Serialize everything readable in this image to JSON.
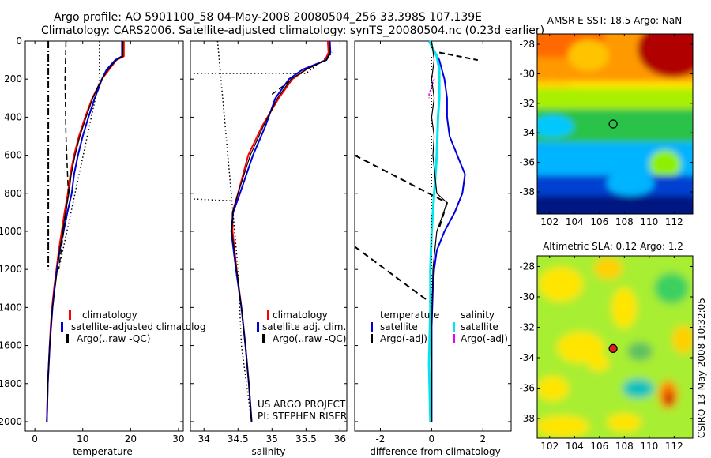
{
  "header": {
    "line1": "Argo profile: AO 5901100_58 04-May-2008 20080504_256 33.398S 107.139E",
    "line2": "Climatology: CARS2006. Satellite-adjusted climatology: synTS_20080504.nc (0.23d earlier)"
  },
  "colors": {
    "climatology": "#ff0000",
    "satellite": "#0000dd",
    "argo": "#000000",
    "sal_satellite": "#00e5ee",
    "sal_argo": "#ee00ee"
  },
  "chart_data": [
    {
      "type": "line",
      "xlabel": "temperature",
      "xlim": [
        -2,
        31
      ],
      "ylim": [
        2050,
        0
      ],
      "xticks": [
        0,
        10,
        20,
        30
      ],
      "yticks": [
        0,
        200,
        400,
        600,
        800,
        1000,
        1200,
        1400,
        1600,
        1800,
        2000
      ],
      "legend": [
        "climatology",
        "satellite-adjusted climatolog",
        "Argo(..raw -QC)"
      ],
      "series": [
        {
          "role": "climatology",
          "points": [
            [
              18.6,
              0
            ],
            [
              18.6,
              80
            ],
            [
              17,
              100
            ],
            [
              15.5,
              150
            ],
            [
              14,
              200
            ],
            [
              13,
              250
            ],
            [
              12,
              300
            ],
            [
              10.5,
              400
            ],
            [
              9.2,
              500
            ],
            [
              8.2,
              600
            ],
            [
              7.4,
              700
            ],
            [
              6.9,
              800
            ],
            [
              6.2,
              900
            ],
            [
              5.6,
              1000
            ],
            [
              5,
              1100
            ],
            [
              4.5,
              1200
            ],
            [
              4,
              1300
            ],
            [
              3.6,
              1400
            ],
            [
              3.3,
              1500
            ],
            [
              3.1,
              1600
            ],
            [
              2.9,
              1700
            ],
            [
              2.7,
              1800
            ],
            [
              2.6,
              1900
            ],
            [
              2.5,
              2000
            ]
          ]
        },
        {
          "role": "satellite",
          "points": [
            [
              18.2,
              0
            ],
            [
              18.2,
              80
            ],
            [
              16.8,
              100
            ],
            [
              15,
              150
            ],
            [
              14,
              200
            ],
            [
              13.3,
              250
            ],
            [
              12.5,
              300
            ],
            [
              11.2,
              400
            ],
            [
              10,
              500
            ],
            [
              9,
              600
            ],
            [
              8.2,
              700
            ],
            [
              7.7,
              800
            ],
            [
              6.8,
              900
            ],
            [
              6,
              1000
            ],
            [
              5.2,
              1100
            ],
            [
              4.6,
              1200
            ],
            [
              4.1,
              1300
            ],
            [
              3.7,
              1400
            ],
            [
              3.4,
              1500
            ],
            [
              3.1,
              1600
            ],
            [
              2.9,
              1700
            ],
            [
              2.7,
              1800
            ],
            [
              2.6,
              1900
            ],
            [
              2.5,
              2000
            ]
          ]
        },
        {
          "role": "argo",
          "points": [
            [
              18.4,
              0
            ],
            [
              18.4,
              80
            ],
            [
              17,
              100
            ],
            [
              15.3,
              150
            ],
            [
              14,
              200
            ],
            [
              13,
              250
            ],
            [
              12.1,
              300
            ],
            [
              10.7,
              400
            ],
            [
              9.4,
              500
            ],
            [
              8.4,
              600
            ],
            [
              7.6,
              700
            ],
            [
              7.1,
              800
            ],
            [
              6.4,
              900
            ],
            [
              5.8,
              1000
            ],
            [
              5.2,
              1100
            ],
            [
              4.7,
              1200
            ],
            [
              4.2,
              1300
            ],
            [
              3.7,
              1400
            ],
            [
              3.4,
              1500
            ],
            [
              3.1,
              1600
            ],
            [
              2.9,
              1700
            ],
            [
              2.7,
              1800
            ],
            [
              2.6,
              1900
            ],
            [
              2.5,
              2000
            ]
          ]
        },
        {
          "role": "argo-dashdot",
          "points": [
            [
              2.8,
              0
            ],
            [
              2.8,
              1200
            ]
          ]
        },
        {
          "role": "argo-dash",
          "points": [
            [
              6.5,
              0
            ],
            [
              6.3,
              200
            ],
            [
              6.5,
              500
            ],
            [
              7,
              800
            ],
            [
              5,
              1200
            ]
          ]
        },
        {
          "role": "argo-dot",
          "points": [
            [
              13.5,
              0
            ],
            [
              13.5,
              200
            ],
            [
              5,
              1200
            ]
          ]
        }
      ]
    },
    {
      "type": "line",
      "xlabel": "salinity",
      "xlim": [
        33.8,
        36.1
      ],
      "ylim": [
        2050,
        0
      ],
      "xticks": [
        34,
        34.5,
        35,
        35.5,
        36
      ],
      "legend": [
        "climatology",
        "satellite adj. clim.",
        "Argo(..raw -QC)"
      ],
      "annotations": [
        "US ARGO PROJECT",
        "PI: STEPHEN RISER"
      ],
      "series": [
        {
          "role": "climatology",
          "points": [
            [
              35.82,
              0
            ],
            [
              35.83,
              60
            ],
            [
              35.78,
              100
            ],
            [
              35.5,
              150
            ],
            [
              35.3,
              200
            ],
            [
              35.1,
              300
            ],
            [
              34.85,
              450
            ],
            [
              34.65,
              600
            ],
            [
              34.5,
              800
            ],
            [
              34.42,
              900
            ],
            [
              34.42,
              1000
            ],
            [
              34.48,
              1200
            ],
            [
              34.55,
              1400
            ],
            [
              34.61,
              1600
            ],
            [
              34.66,
              1800
            ],
            [
              34.7,
              2000
            ]
          ]
        },
        {
          "role": "satellite",
          "points": [
            [
              35.85,
              0
            ],
            [
              35.86,
              60
            ],
            [
              35.8,
              100
            ],
            [
              35.45,
              150
            ],
            [
              35.25,
              200
            ],
            [
              35.05,
              300
            ],
            [
              34.9,
              450
            ],
            [
              34.72,
              600
            ],
            [
              34.53,
              800
            ],
            [
              34.43,
              900
            ],
            [
              34.4,
              1000
            ],
            [
              34.47,
              1200
            ],
            [
              34.55,
              1400
            ],
            [
              34.61,
              1600
            ],
            [
              34.66,
              1800
            ],
            [
              34.7,
              2000
            ]
          ]
        },
        {
          "role": "argo",
          "points": [
            [
              35.84,
              0
            ],
            [
              35.85,
              60
            ],
            [
              35.8,
              100
            ],
            [
              35.5,
              150
            ],
            [
              35.28,
              200
            ],
            [
              35.08,
              300
            ],
            [
              34.87,
              450
            ],
            [
              34.68,
              600
            ],
            [
              34.5,
              800
            ],
            [
              34.42,
              900
            ],
            [
              34.41,
              1000
            ],
            [
              34.48,
              1200
            ],
            [
              34.55,
              1400
            ],
            [
              34.61,
              1600
            ],
            [
              34.66,
              1800
            ],
            [
              34.7,
              2000
            ]
          ]
        },
        {
          "role": "argo-dash",
          "points": [
            [
              35,
              280
            ],
            [
              35.3,
              200
            ]
          ]
        },
        {
          "role": "argo-dot-a",
          "points": [
            [
              34.2,
              0
            ],
            [
              34.4,
              800
            ],
            [
              34.5,
              1200
            ],
            [
              34.55,
              1600
            ],
            [
              34.7,
              2000
            ]
          ]
        },
        {
          "role": "argo-dot-b",
          "points": [
            [
              33.85,
              170
            ],
            [
              35.5,
              170
            ],
            [
              35.9,
              60
            ]
          ]
        },
        {
          "role": "argo-dot-c",
          "points": [
            [
              33.85,
              830
            ],
            [
              34.4,
              840
            ]
          ]
        }
      ]
    },
    {
      "type": "line",
      "xlabel": "difference from climatology",
      "xlim": [
        -3,
        3.1
      ],
      "ylim": [
        2050,
        0
      ],
      "xticks": [
        -2,
        0,
        2
      ],
      "legend": {
        "left_header": "temperature",
        "right_header": "salinity",
        "left": [
          "satellite",
          "Argo(-adj)"
        ],
        "right": [
          "satellite",
          "Argo(-adj)"
        ]
      },
      "series": [
        {
          "role": "satellite",
          "points": [
            [
              -0.1,
              0
            ],
            [
              0.3,
              100
            ],
            [
              0.5,
              200
            ],
            [
              0.6,
              300
            ],
            [
              0.6,
              400
            ],
            [
              0.7,
              500
            ],
            [
              1,
              600
            ],
            [
              1.3,
              700
            ],
            [
              1.2,
              800
            ],
            [
              0.9,
              900
            ],
            [
              0.5,
              1000
            ],
            [
              0.2,
              1100
            ],
            [
              0.1,
              1200
            ],
            [
              0.05,
              1300
            ],
            [
              0,
              1500
            ],
            [
              0,
              2000
            ]
          ]
        },
        {
          "role": "argo",
          "points": [
            [
              0,
              0
            ],
            [
              0.1,
              100
            ],
            [
              0,
              200
            ],
            [
              0.1,
              300
            ],
            [
              0,
              400
            ],
            [
              0.1,
              500
            ],
            [
              0.05,
              600
            ],
            [
              0.2,
              800
            ],
            [
              0.6,
              850
            ],
            [
              0.2,
              1000
            ],
            [
              0.05,
              1200
            ],
            [
              0,
              1500
            ],
            [
              0,
              2000
            ]
          ]
        },
        {
          "role": "argo-dash-a",
          "points": [
            [
              0.3,
              60
            ],
            [
              1.8,
              100
            ]
          ]
        },
        {
          "role": "argo-dash-b",
          "points": [
            [
              -3,
              600
            ],
            [
              0.6,
              850
            ],
            [
              0.25,
              1000
            ]
          ]
        },
        {
          "role": "argo-dash-c",
          "points": [
            [
              -3,
              1080
            ],
            [
              0,
              1380
            ]
          ]
        },
        {
          "role": "sal_satellite",
          "points": [
            [
              -0.1,
              0
            ],
            [
              0.2,
              80
            ],
            [
              0.3,
              150
            ],
            [
              0.3,
              300
            ],
            [
              0.25,
              400
            ],
            [
              0.2,
              600
            ],
            [
              0.1,
              800
            ],
            [
              0,
              1000
            ],
            [
              -0.05,
              1200
            ],
            [
              -0.05,
              1400
            ],
            [
              -0.1,
              1700
            ],
            [
              -0.05,
              2000
            ]
          ]
        },
        {
          "role": "sal_argo",
          "points": [
            [
              0,
              180
            ],
            [
              0.1,
              200
            ],
            [
              -0.1,
              280
            ],
            [
              -0.1,
              300
            ]
          ]
        },
        {
          "role": "zero-dot",
          "points": [
            [
              0,
              0
            ],
            [
              0,
              2000
            ]
          ]
        }
      ]
    },
    {
      "type": "heatmap",
      "title": "AMSR-E SST: 18.5 Argo: NaN",
      "xticks": [
        102,
        104,
        106,
        108,
        110,
        112
      ],
      "yticks": [
        -28,
        -30,
        -32,
        -34,
        -36,
        -38
      ],
      "xlim": [
        101,
        113.5
      ],
      "ylim": [
        -39.5,
        -27.3
      ],
      "marker": [
        107.1,
        -33.4
      ]
    },
    {
      "type": "heatmap",
      "title": "Altimetric SLA: 0.12 Argo: 1.2",
      "xticks": [
        102,
        104,
        106,
        108,
        110,
        112
      ],
      "yticks": [
        -28,
        -30,
        -32,
        -34,
        -36,
        -38
      ],
      "xlim": [
        101,
        113.5
      ],
      "ylim": [
        -39.3,
        -27.3
      ],
      "marker": [
        107.1,
        -33.4
      ]
    }
  ],
  "footer": {
    "side_label": "CSIRO 13-May-2008 10:32:05"
  }
}
